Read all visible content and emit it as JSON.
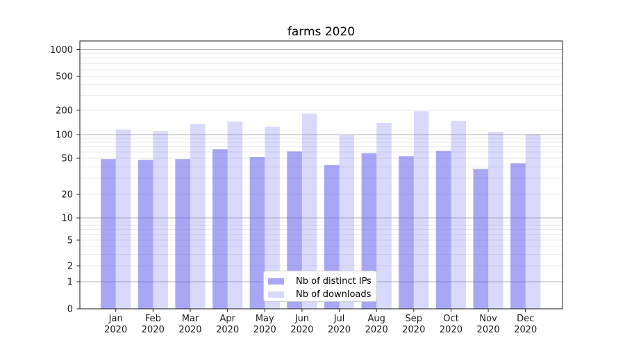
{
  "chart_data": {
    "type": "bar",
    "title": "farms 2020",
    "categories": [
      "Jan 2020",
      "Feb 2020",
      "Mar 2020",
      "Apr 2020",
      "May 2020",
      "Jun 2020",
      "Jul 2020",
      "Aug 2020",
      "Sep 2020",
      "Oct 2020",
      "Nov 2020",
      "Dec 2020"
    ],
    "series": [
      {
        "name": "Nb of distinct IPs",
        "color": "#5f5fed",
        "opacity": 0.55,
        "legend_color": "#a7a7f5",
        "values": [
          49,
          48,
          49,
          65,
          52,
          61,
          42,
          58,
          53,
          62,
          38,
          44
        ]
      },
      {
        "name": "Nb of downloads",
        "color": "#5f5fed",
        "opacity": 0.24,
        "legend_color": "#d9d9fb",
        "values": [
          116,
          110,
          135,
          145,
          125,
          182,
          98,
          140,
          195,
          148,
          108,
          101
        ]
      }
    ],
    "xlabel": "",
    "ylabel": "",
    "yscale": "symlog",
    "ylim": [
      0,
      1000
    ],
    "y_ticks": [
      0,
      1,
      2,
      5,
      10,
      20,
      50,
      100,
      200,
      500,
      1000
    ],
    "grid": true,
    "legend_position": "lower center",
    "colors": {
      "major_gridline": "#b0b0b0",
      "minor_gridline": "#e8e8e8",
      "spine": "#1a1a1a",
      "tick_label": "#1a1a1a"
    }
  }
}
